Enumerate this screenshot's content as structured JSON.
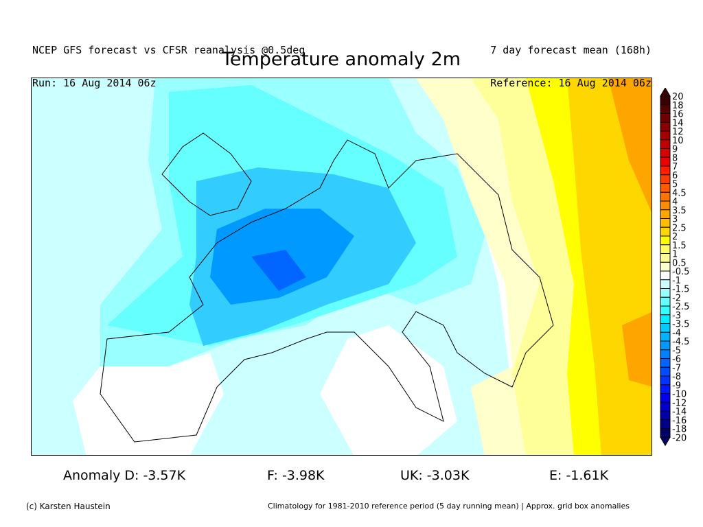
{
  "header": {
    "left_line1": "NCEP GFS forecast vs CFSR reanalysis @0.5deg",
    "left_line2": "Run: 16 Aug 2014 06z",
    "right_line1": "7 day forecast mean (168h)",
    "right_line2": "Reference: 16 Aug 2014 06z",
    "title": "Temperature anomaly 2m"
  },
  "colorbar": {
    "labels": [
      "20",
      "18",
      "16",
      "14",
      "12",
      "10",
      "9",
      "8",
      "7",
      "6",
      "5",
      "4.5",
      "4",
      "3.5",
      "3",
      "2.5",
      "2",
      "1.5",
      "1",
      "0.5",
      "-0.5",
      "-1",
      "-1.5",
      "-2",
      "-2.5",
      "-3",
      "-3.5",
      "-4",
      "-4.5",
      "-5",
      "-6",
      "-7",
      "-8",
      "-9",
      "-10",
      "-12",
      "-14",
      "-16",
      "-18",
      "-20"
    ],
    "colors": [
      "#3a0000",
      "#560000",
      "#700000",
      "#8a0000",
      "#a50000",
      "#bf0000",
      "#d80000",
      "#ee0000",
      "#ff1e00",
      "#ff3c00",
      "#ff5a00",
      "#ff7300",
      "#ff8c00",
      "#ffa500",
      "#ffbe00",
      "#ffd700",
      "#ffff00",
      "#ffff66",
      "#ffff99",
      "#ffffcc",
      "#ffffff",
      "#ccffff",
      "#99ffff",
      "#66ffff",
      "#33ffff",
      "#00eeff",
      "#00ccff",
      "#00b4ff",
      "#0099ff",
      "#0080ff",
      "#0066ff",
      "#004cff",
      "#0033ff",
      "#0019ff",
      "#0000ee",
      "#0000cc",
      "#0000aa",
      "#000088",
      "#000066"
    ],
    "top_arrow_color": "#3a0000",
    "bottom_arrow_color": "#000066"
  },
  "stats": {
    "germany": "Anomaly D: -3.57K",
    "france": "F: -3.98K",
    "uk": "UK: -3.03K",
    "spain": "E: -1.61K"
  },
  "footer": {
    "credit": "(c) Karsten Haustein",
    "note": "Climatology for 1981-2010 reference period (5 day running mean) | Approx. grid box anomalies"
  }
}
